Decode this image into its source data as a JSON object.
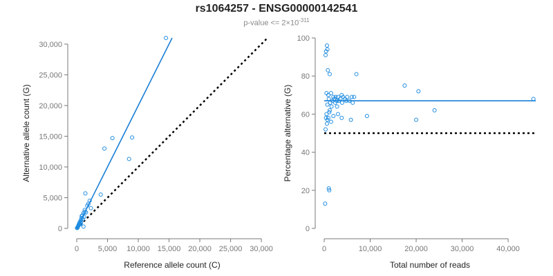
{
  "title": "rs1064257 - ENSG00000142541",
  "subtitle": {
    "prefix": "p-value <= 2",
    "times": "×",
    "base": "10",
    "exponent": "-311"
  },
  "colors": {
    "points": "#1f8ce0",
    "fit": "#1a7fd6",
    "reference": "#000000",
    "axis": "#777777"
  },
  "chart_data": [
    {
      "type": "scatter",
      "xlabel": "Reference allele count (C)",
      "ylabel": "Alternative allele count (G)",
      "xlim": [
        0,
        31000
      ],
      "ylim": [
        0,
        31000
      ],
      "xticks": [
        0,
        5000,
        10000,
        15000,
        20000,
        25000,
        30000
      ],
      "yticks": [
        0,
        5000,
        10000,
        15000,
        20000,
        25000,
        30000
      ],
      "xtick_labels": [
        "0",
        "5,000",
        "10,000",
        "15,000",
        "20,000",
        "25,000",
        "30,000"
      ],
      "ytick_labels": [
        "0",
        "5,000",
        "10,000",
        "15,000",
        "20,000",
        "25,000",
        "30,000"
      ],
      "fit_line": {
        "x": [
          0,
          15500
        ],
        "y": [
          0,
          31000
        ],
        "style": "solid"
      },
      "reference_line": {
        "x": [
          0,
          31000
        ],
        "y": [
          0,
          31000
        ],
        "style": "dotted"
      },
      "points": [
        [
          14500,
          31000
        ],
        [
          5800,
          14700
        ],
        [
          9000,
          14800
        ],
        [
          4500,
          13000
        ],
        [
          8500,
          11300
        ],
        [
          3900,
          5500
        ],
        [
          1400,
          5700
        ],
        [
          2100,
          4500
        ],
        [
          1900,
          4000
        ],
        [
          2300,
          3300
        ],
        [
          1700,
          3700
        ],
        [
          1300,
          3000
        ],
        [
          1100,
          2500
        ],
        [
          900,
          2100
        ],
        [
          800,
          1700
        ],
        [
          700,
          1400
        ],
        [
          600,
          1200
        ],
        [
          500,
          1000
        ],
        [
          400,
          800
        ],
        [
          350,
          600
        ],
        [
          300,
          500
        ],
        [
          250,
          400
        ],
        [
          200,
          300
        ],
        [
          150,
          200
        ],
        [
          100,
          100
        ],
        [
          50,
          50
        ],
        [
          700,
          900
        ],
        [
          1000,
          1500
        ],
        [
          1500,
          2600
        ],
        [
          1200,
          1900
        ],
        [
          600,
          700
        ],
        [
          450,
          900
        ],
        [
          1100,
          300
        ],
        [
          800,
          2000
        ],
        [
          1300,
          2700
        ]
      ]
    },
    {
      "type": "scatter",
      "xlabel": "Total number of reads",
      "ylabel": "Percentage alternative (G)",
      "xlim": [
        0,
        46000
      ],
      "ylim": [
        0,
        100
      ],
      "xticks": [
        0,
        10000,
        20000,
        30000,
        40000
      ],
      "yticks": [
        0,
        20,
        40,
        60,
        80,
        100
      ],
      "xtick_labels": [
        "0",
        "10,000",
        "20,000",
        "30,000",
        "40,000"
      ],
      "ytick_labels": [
        "0",
        "20",
        "40",
        "60",
        "80",
        "100"
      ],
      "fit_line": {
        "x": [
          0,
          46000
        ],
        "y": [
          67,
          67
        ],
        "style": "solid"
      },
      "reference_line": {
        "x": [
          0,
          46000
        ],
        "y": [
          50,
          50
        ],
        "style": "dotted"
      },
      "points": [
        [
          600,
          96
        ],
        [
          700,
          94
        ],
        [
          400,
          93
        ],
        [
          300,
          91
        ],
        [
          800,
          83
        ],
        [
          1200,
          81
        ],
        [
          7000,
          81
        ],
        [
          17500,
          75
        ],
        [
          20500,
          72
        ],
        [
          500,
          71
        ],
        [
          1500,
          71
        ],
        [
          3800,
          70
        ],
        [
          900,
          70
        ],
        [
          2000,
          69
        ],
        [
          2500,
          69
        ],
        [
          3000,
          69
        ],
        [
          4100,
          69
        ],
        [
          5000,
          69
        ],
        [
          6000,
          69
        ],
        [
          6500,
          69
        ],
        [
          1000,
          68
        ],
        [
          2200,
          68
        ],
        [
          3500,
          68
        ],
        [
          4500,
          68
        ],
        [
          45500,
          68
        ],
        [
          1800,
          67
        ],
        [
          2700,
          67
        ],
        [
          3200,
          67
        ],
        [
          4800,
          67
        ],
        [
          5500,
          67
        ],
        [
          1300,
          66
        ],
        [
          2400,
          66
        ],
        [
          3900,
          66
        ],
        [
          6200,
          66
        ],
        [
          700,
          65
        ],
        [
          1600,
          64
        ],
        [
          24000,
          62
        ],
        [
          1100,
          61
        ],
        [
          3000,
          60
        ],
        [
          2000,
          59
        ],
        [
          500,
          60
        ],
        [
          9300,
          59
        ],
        [
          400,
          58
        ],
        [
          900,
          58
        ],
        [
          3800,
          58
        ],
        [
          700,
          57
        ],
        [
          20000,
          57
        ],
        [
          1500,
          56
        ],
        [
          600,
          55
        ],
        [
          300,
          52
        ],
        [
          1100,
          20
        ],
        [
          1000,
          21
        ],
        [
          200,
          13
        ],
        [
          1200,
          62
        ],
        [
          2800,
          64
        ],
        [
          5800,
          57
        ]
      ]
    }
  ]
}
